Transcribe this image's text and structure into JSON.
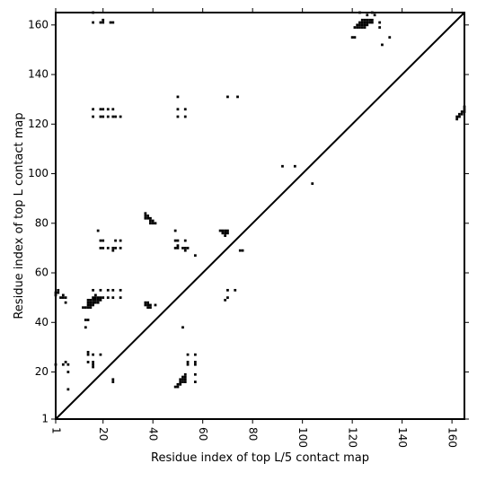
{
  "chart_data": {
    "type": "scatter",
    "subtype": "contact-map",
    "xlabel": "Residue index of top L/5 contact map",
    "ylabel": "Residue index of top L contact map",
    "xlim": [
      1,
      165
    ],
    "ylim": [
      1,
      165
    ],
    "x_ticks": [
      1,
      20,
      40,
      60,
      80,
      100,
      120,
      140,
      160
    ],
    "y_ticks": [
      1,
      20,
      40,
      60,
      80,
      100,
      120,
      140,
      160
    ],
    "x_tick_rotation": -90,
    "grid": false,
    "legend": "none",
    "colors": {
      "contact": "#000000",
      "background": "#ffffff",
      "diagonal": "#000000"
    },
    "diagonal": [
      [
        1,
        1
      ],
      [
        165,
        165
      ]
    ],
    "lower_triangle_points": [
      [
        6,
        13
      ],
      [
        6,
        20
      ],
      [
        6,
        23
      ],
      [
        14,
        24
      ],
      [
        14,
        27
      ],
      [
        14,
        28
      ],
      [
        16,
        22
      ],
      [
        16,
        23
      ],
      [
        16,
        24
      ],
      [
        16,
        27
      ],
      [
        19,
        27
      ],
      [
        24,
        16
      ],
      [
        24,
        17
      ],
      [
        49,
        14
      ],
      [
        50,
        14
      ],
      [
        50,
        15
      ],
      [
        51,
        15
      ],
      [
        51,
        16
      ],
      [
        51,
        17
      ],
      [
        52,
        16
      ],
      [
        52,
        17
      ],
      [
        52,
        18
      ],
      [
        53,
        16
      ],
      [
        53,
        17
      ],
      [
        53,
        18
      ],
      [
        53,
        19
      ],
      [
        54,
        23
      ],
      [
        54,
        24
      ],
      [
        54,
        27
      ],
      [
        57,
        16
      ],
      [
        57,
        19
      ],
      [
        57,
        23
      ],
      [
        57,
        24
      ],
      [
        57,
        27
      ],
      [
        52,
        38
      ],
      [
        69,
        49
      ],
      [
        70,
        50
      ],
      [
        70,
        53
      ],
      [
        73,
        53
      ],
      [
        70,
        131
      ],
      [
        74,
        131
      ],
      [
        92,
        103
      ],
      [
        97,
        103
      ],
      [
        104,
        96
      ],
      [
        162,
        122
      ],
      [
        162,
        123
      ],
      [
        163,
        123
      ],
      [
        163,
        124
      ],
      [
        164,
        124
      ],
      [
        164,
        125
      ],
      [
        165,
        125
      ],
      [
        165,
        126
      ],
      [
        165,
        127
      ]
    ],
    "upper_triangle_points": [
      [
        1,
        51
      ],
      [
        1,
        52
      ],
      [
        2,
        53
      ],
      [
        2,
        52
      ],
      [
        3,
        50
      ],
      [
        4,
        50
      ],
      [
        4,
        51
      ],
      [
        5,
        50
      ],
      [
        5,
        48
      ],
      [
        1,
        23
      ],
      [
        4,
        23
      ],
      [
        5,
        24
      ],
      [
        12,
        46
      ],
      [
        13,
        46
      ],
      [
        14,
        46
      ],
      [
        14,
        47
      ],
      [
        14,
        48
      ],
      [
        14,
        49
      ],
      [
        15,
        46
      ],
      [
        15,
        47
      ],
      [
        15,
        48
      ],
      [
        15,
        49
      ],
      [
        16,
        47
      ],
      [
        16,
        48
      ],
      [
        16,
        49
      ],
      [
        16,
        50
      ],
      [
        17,
        48
      ],
      [
        17,
        49
      ],
      [
        17,
        50
      ],
      [
        17,
        51
      ],
      [
        18,
        48
      ],
      [
        18,
        49
      ],
      [
        18,
        50
      ],
      [
        19,
        49
      ],
      [
        19,
        50
      ],
      [
        20,
        50
      ],
      [
        13,
        38
      ],
      [
        13,
        41
      ],
      [
        14,
        41
      ],
      [
        16,
        53
      ],
      [
        19,
        53
      ],
      [
        22,
        50
      ],
      [
        22,
        53
      ],
      [
        24,
        50
      ],
      [
        24,
        53
      ],
      [
        27,
        50
      ],
      [
        27,
        53
      ],
      [
        18,
        77
      ],
      [
        19,
        70
      ],
      [
        19,
        73
      ],
      [
        20,
        70
      ],
      [
        20,
        73
      ],
      [
        22,
        70
      ],
      [
        24,
        69
      ],
      [
        24,
        70
      ],
      [
        25,
        70
      ],
      [
        25,
        73
      ],
      [
        27,
        70
      ],
      [
        27,
        73
      ],
      [
        16,
        123
      ],
      [
        16,
        126
      ],
      [
        19,
        123
      ],
      [
        19,
        126
      ],
      [
        20,
        123
      ],
      [
        20,
        126
      ],
      [
        22,
        123
      ],
      [
        22,
        126
      ],
      [
        24,
        123
      ],
      [
        24,
        126
      ],
      [
        25,
        123
      ],
      [
        27,
        123
      ],
      [
        16,
        161
      ],
      [
        16,
        165
      ],
      [
        19,
        161
      ],
      [
        20,
        161
      ],
      [
        20,
        162
      ],
      [
        23,
        161
      ],
      [
        24,
        161
      ],
      [
        37,
        82
      ],
      [
        37,
        83
      ],
      [
        37,
        84
      ],
      [
        38,
        82
      ],
      [
        38,
        83
      ],
      [
        39,
        80
      ],
      [
        39,
        81
      ],
      [
        39,
        82
      ],
      [
        40,
        80
      ],
      [
        40,
        81
      ],
      [
        41,
        80
      ],
      [
        37,
        47
      ],
      [
        37,
        48
      ],
      [
        38,
        46
      ],
      [
        38,
        47
      ],
      [
        38,
        48
      ],
      [
        39,
        46
      ],
      [
        39,
        47
      ],
      [
        41,
        47
      ],
      [
        49,
        70
      ],
      [
        49,
        73
      ],
      [
        49,
        77
      ],
      [
        50,
        70
      ],
      [
        50,
        71
      ],
      [
        50,
        73
      ],
      [
        52,
        70
      ],
      [
        53,
        69
      ],
      [
        53,
        70
      ],
      [
        53,
        73
      ],
      [
        54,
        70
      ],
      [
        57,
        67
      ],
      [
        50,
        123
      ],
      [
        50,
        126
      ],
      [
        50,
        131
      ],
      [
        53,
        123
      ],
      [
        53,
        126
      ],
      [
        67,
        77
      ],
      [
        68,
        76
      ],
      [
        68,
        77
      ],
      [
        69,
        75
      ],
      [
        69,
        76
      ],
      [
        69,
        77
      ],
      [
        70,
        76
      ],
      [
        70,
        77
      ],
      [
        75,
        69
      ],
      [
        76,
        69
      ],
      [
        120,
        155
      ],
      [
        121,
        155
      ],
      [
        121,
        159
      ],
      [
        122,
        159
      ],
      [
        122,
        160
      ],
      [
        123,
        159
      ],
      [
        123,
        160
      ],
      [
        123,
        161
      ],
      [
        124,
        159
      ],
      [
        124,
        160
      ],
      [
        124,
        161
      ],
      [
        124,
        162
      ],
      [
        125,
        159
      ],
      [
        125,
        160
      ],
      [
        125,
        161
      ],
      [
        125,
        162
      ],
      [
        126,
        160
      ],
      [
        126,
        161
      ],
      [
        126,
        162
      ],
      [
        127,
        161
      ],
      [
        127,
        162
      ],
      [
        128,
        161
      ],
      [
        128,
        162
      ],
      [
        129,
        164
      ],
      [
        126,
        164
      ],
      [
        123,
        165
      ],
      [
        128,
        165
      ],
      [
        131,
        161
      ],
      [
        131,
        159
      ],
      [
        132,
        152
      ],
      [
        135,
        155
      ]
    ]
  }
}
